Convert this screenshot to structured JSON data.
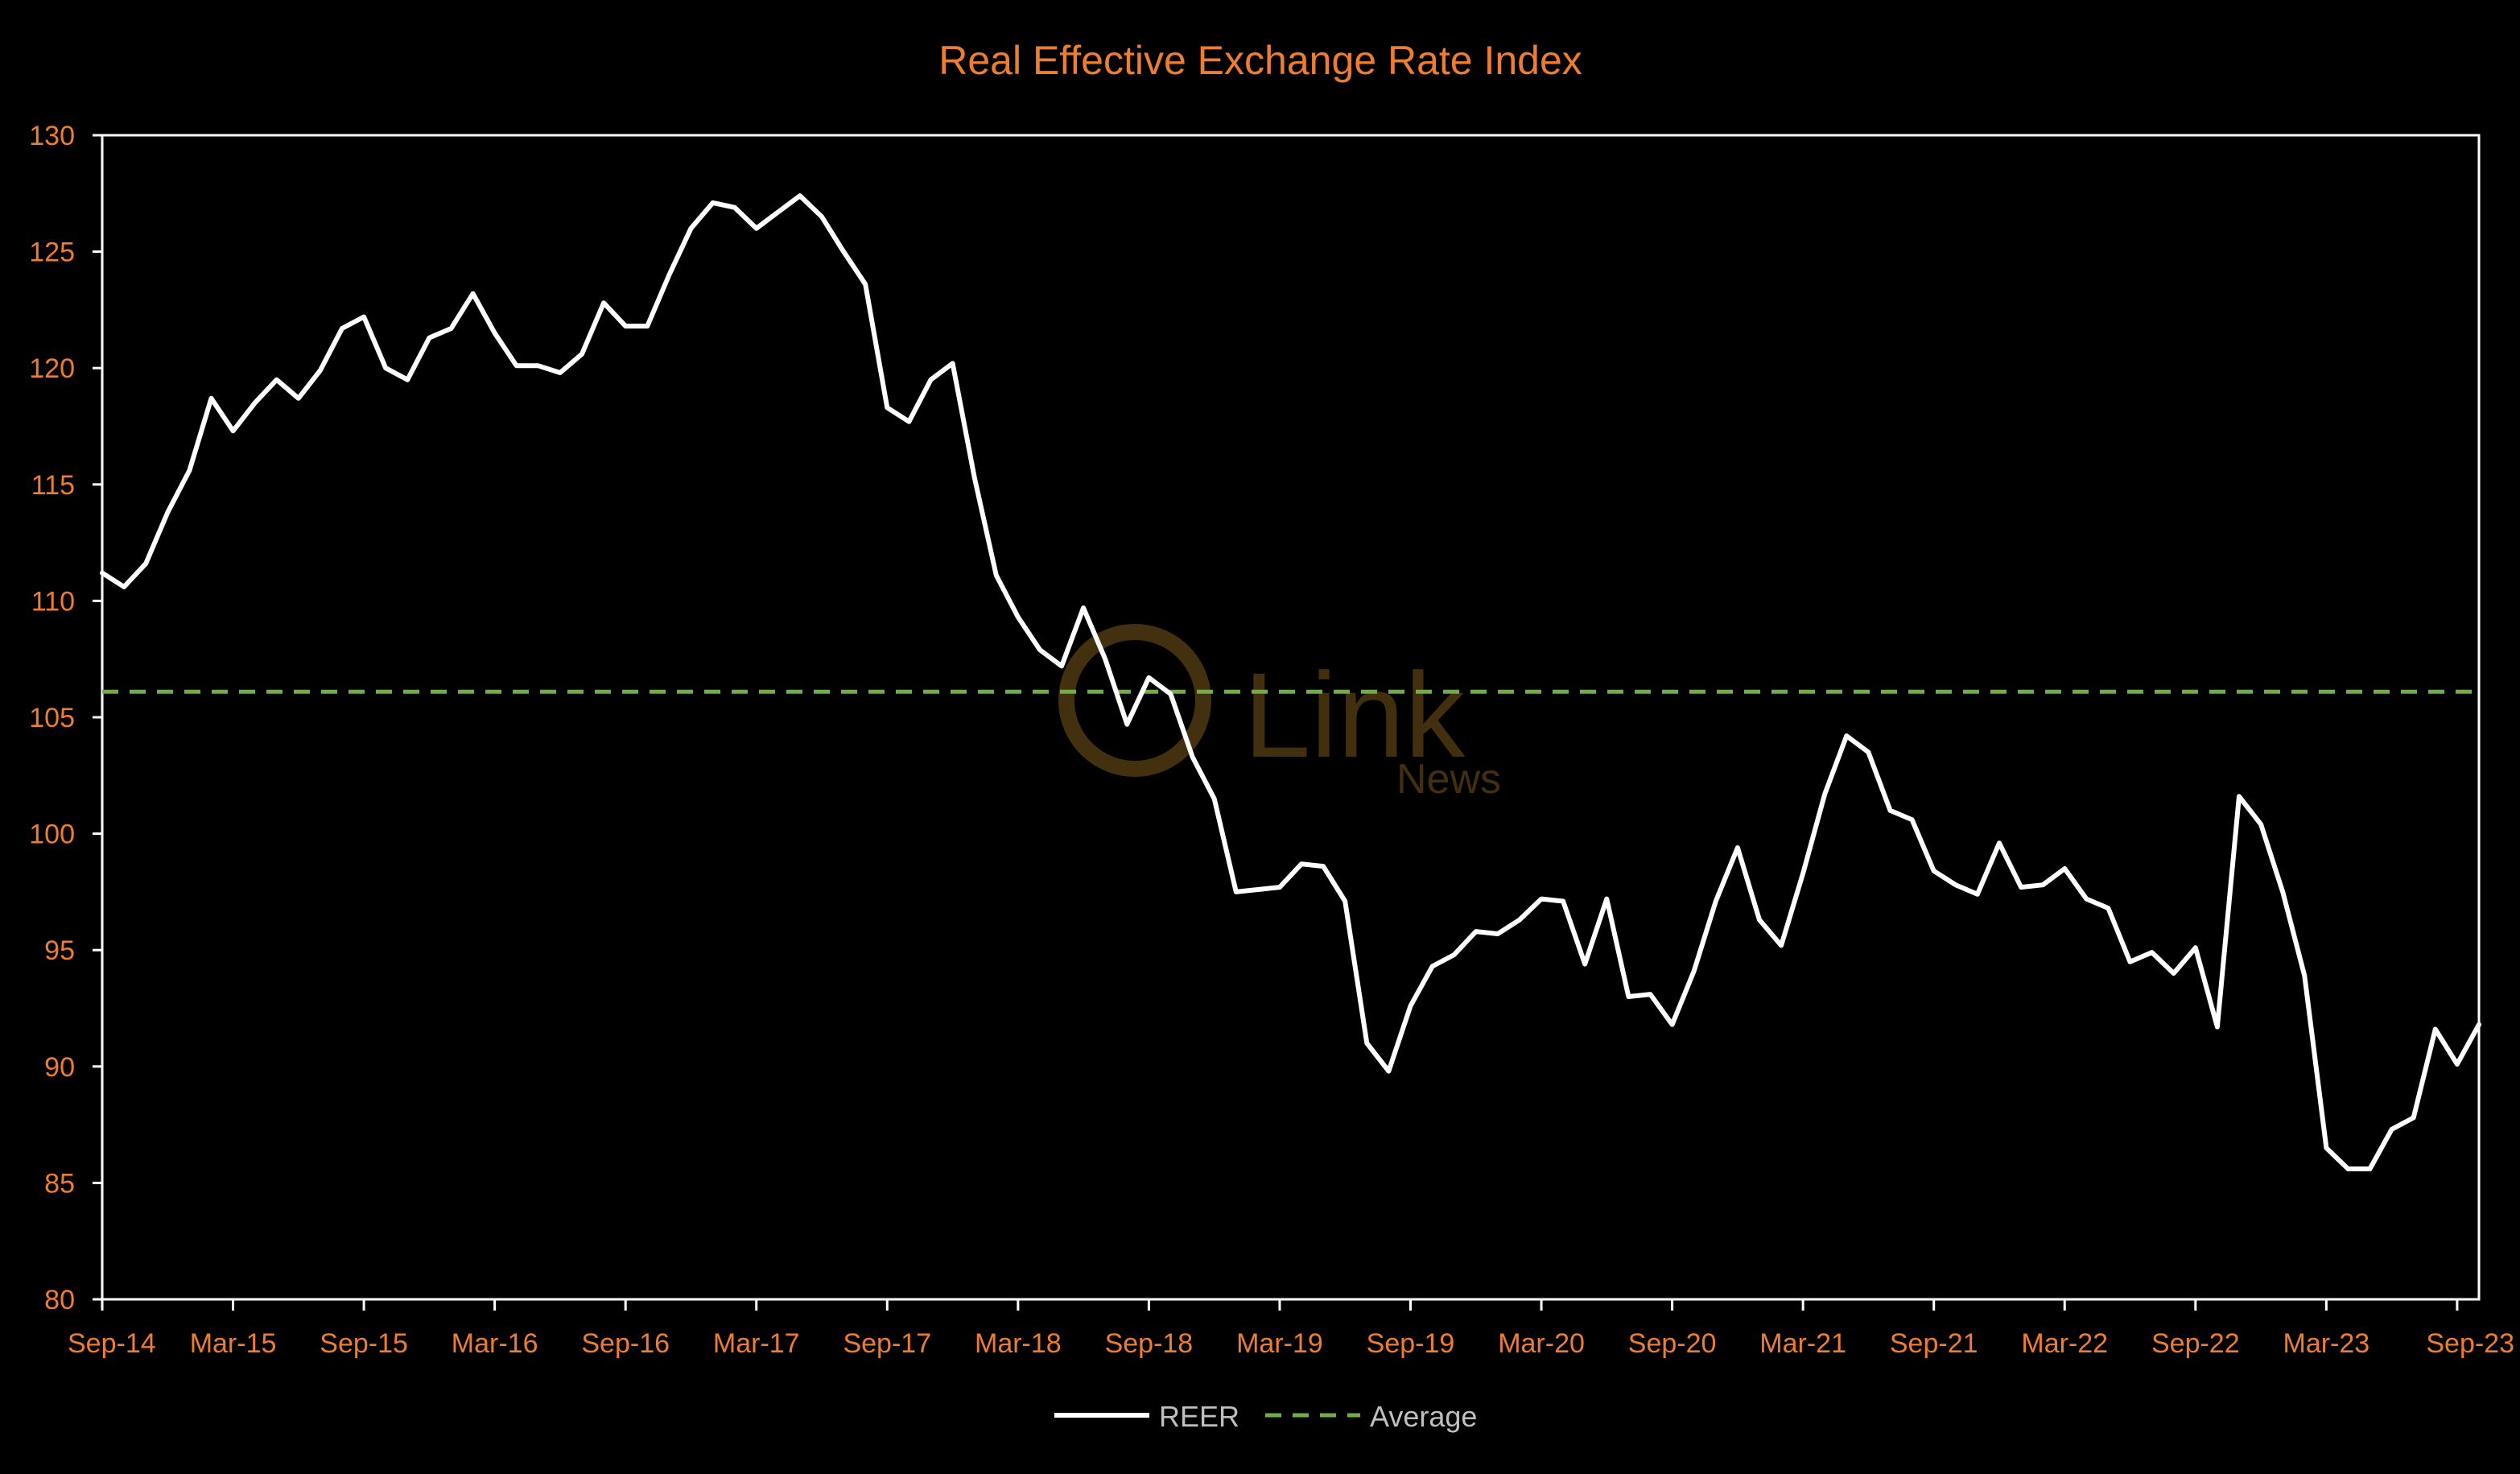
{
  "chart_data": {
    "type": "line",
    "title": "Real Effective Exchange Rate Index",
    "xlabel": "",
    "ylabel": "",
    "ylim": [
      80,
      130
    ],
    "yticks": [
      80,
      85,
      90,
      95,
      100,
      105,
      110,
      115,
      120,
      125,
      130
    ],
    "x_tick_labels": [
      "Sep-14",
      "Mar-15",
      "Sep-15",
      "Mar-16",
      "Sep-16",
      "Mar-17",
      "Sep-17",
      "Mar-18",
      "Sep-18",
      "Mar-19",
      "Sep-19",
      "Mar-20",
      "Sep-20",
      "Mar-21",
      "Sep-21",
      "Mar-22",
      "Sep-22",
      "Mar-23",
      "Sep-23"
    ],
    "x_start": "Sep-14",
    "x_end": "Sep-23",
    "grid": false,
    "legend_position": "bottom",
    "watermark": "Link News",
    "colors": {
      "background": "#000000",
      "title": "#ED7D31",
      "tick_label": "#ED7D31",
      "axis": "#FFFFFF",
      "reer_line": "#FFFFFF",
      "average_line": "#70AD47",
      "legend_text": "#BFBFBF",
      "watermark": "#4A3510"
    },
    "series": [
      {
        "name": "REER",
        "style": "solid",
        "values": [
          111.2,
          110.6,
          111.6,
          113.8,
          115.6,
          118.7,
          117.3,
          118.5,
          119.5,
          118.7,
          119.9,
          121.7,
          122.2,
          120.0,
          119.5,
          121.3,
          121.7,
          123.2,
          121.5,
          120.1,
          120.1,
          119.8,
          120.6,
          122.8,
          121.8,
          121.8,
          124.0,
          126.0,
          127.1,
          126.9,
          126.0,
          126.7,
          127.4,
          126.5,
          125.0,
          123.6,
          118.3,
          117.7,
          119.5,
          120.2,
          115.3,
          111.1,
          109.3,
          107.9,
          107.2,
          109.7,
          107.5,
          104.7,
          106.7,
          106.0,
          103.3,
          101.5,
          97.5,
          97.6,
          97.7,
          98.7,
          98.6,
          97.1,
          91.0,
          89.8,
          92.6,
          94.3,
          94.8,
          95.8,
          95.7,
          96.3,
          97.2,
          97.1,
          94.4,
          97.2,
          93.0,
          93.1,
          91.8,
          94.1,
          97.1,
          99.4,
          96.3,
          95.2,
          98.3,
          101.7,
          104.2,
          103.5,
          101.0,
          100.6,
          98.4,
          97.8,
          97.4,
          99.6,
          97.7,
          97.8,
          98.5,
          97.2,
          96.8,
          94.5,
          94.9,
          94.0,
          95.1,
          91.7,
          101.6,
          100.4,
          97.5,
          93.9,
          86.5,
          85.6,
          85.6,
          87.3,
          87.8,
          91.6,
          90.1,
          91.8
        ]
      },
      {
        "name": "Average",
        "style": "dashed",
        "values": [
          106.1
        ]
      }
    ]
  }
}
